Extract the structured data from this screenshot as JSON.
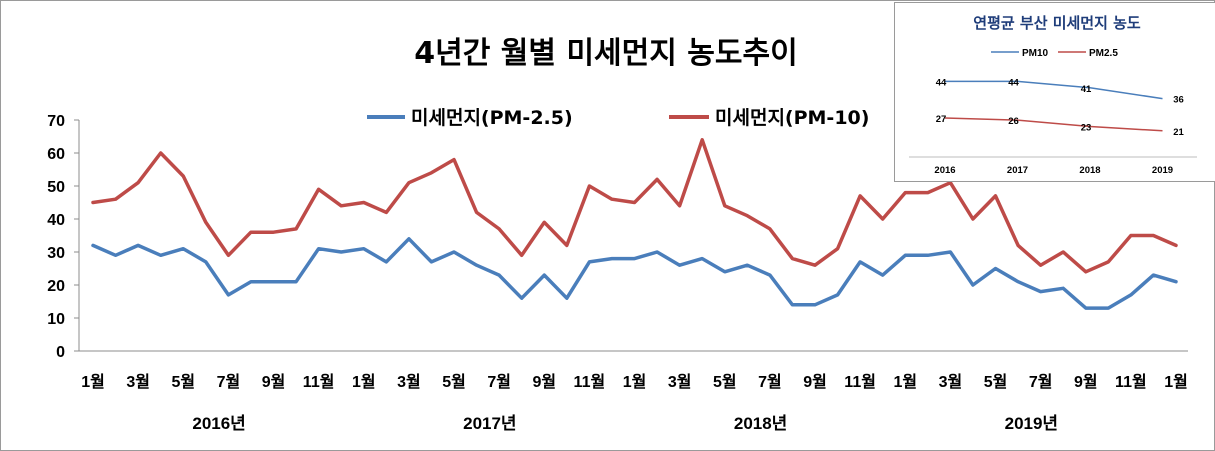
{
  "chart_data": [
    {
      "type": "line",
      "title": "4년간 월별 미세먼지 농도추이",
      "ylim": [
        0,
        70
      ],
      "yticks": [
        "0",
        "10",
        "20",
        "30",
        "40",
        "50",
        "60",
        "70"
      ],
      "grid": false,
      "legend": "top-center",
      "x_tick_labels": [
        {
          "index": 0,
          "label": "1월"
        },
        {
          "index": 2,
          "label": "3월"
        },
        {
          "index": 4,
          "label": "5월"
        },
        {
          "index": 6,
          "label": "7월"
        },
        {
          "index": 8,
          "label": "9월"
        },
        {
          "index": 10,
          "label": "11월"
        },
        {
          "index": 12,
          "label": "1월"
        },
        {
          "index": 14,
          "label": "3월"
        },
        {
          "index": 16,
          "label": "5월"
        },
        {
          "index": 18,
          "label": "7월"
        },
        {
          "index": 20,
          "label": "9월"
        },
        {
          "index": 22,
          "label": "11월"
        },
        {
          "index": 24,
          "label": "1월"
        },
        {
          "index": 26,
          "label": "3월"
        },
        {
          "index": 28,
          "label": "5월"
        },
        {
          "index": 30,
          "label": "7월"
        },
        {
          "index": 32,
          "label": "9월"
        },
        {
          "index": 34,
          "label": "11월"
        },
        {
          "index": 36,
          "label": "1월"
        },
        {
          "index": 38,
          "label": "3월"
        },
        {
          "index": 40,
          "label": "5월"
        },
        {
          "index": 42,
          "label": "7월"
        },
        {
          "index": 44,
          "label": "9월"
        },
        {
          "index": 46,
          "label": "11월"
        },
        {
          "index": 48,
          "label": "1월"
        }
      ],
      "year_labels": [
        {
          "center_index": 5.5,
          "label": "2016년"
        },
        {
          "center_index": 17.5,
          "label": "2017년"
        },
        {
          "center_index": 29.5,
          "label": "2018년"
        },
        {
          "center_index": 41.5,
          "label": "2019년"
        }
      ],
      "series": [
        {
          "name": "미세먼지(PM-2.5)",
          "color": "#4a7ebb",
          "values": [
            32,
            29,
            32,
            29,
            31,
            27,
            17,
            21,
            21,
            21,
            31,
            30,
            31,
            27,
            34,
            27,
            30,
            26,
            23,
            16,
            23,
            16,
            27,
            28,
            28,
            30,
            26,
            28,
            24,
            26,
            23,
            14,
            14,
            17,
            27,
            23,
            29,
            29,
            30,
            20,
            25,
            21,
            18,
            19,
            13,
            13,
            17,
            23,
            21
          ]
        },
        {
          "name": "미세먼지(PM-10)",
          "color": "#be4b48",
          "values": [
            45,
            46,
            51,
            60,
            53,
            39,
            29,
            36,
            36,
            37,
            49,
            44,
            45,
            42,
            51,
            54,
            58,
            42,
            37,
            29,
            39,
            32,
            50,
            46,
            45,
            52,
            44,
            64,
            44,
            41,
            37,
            28,
            26,
            31,
            47,
            40,
            48,
            48,
            51,
            40,
            47,
            32,
            26,
            30,
            24,
            27,
            35,
            35,
            32
          ]
        }
      ]
    },
    {
      "type": "line",
      "title": "연평균 부산 미세먼지 농도",
      "categories": [
        "2016",
        "2017",
        "2018",
        "2019"
      ],
      "legend": "top-center",
      "grid": false,
      "series": [
        {
          "name": "PM10",
          "color": "#4a7ebb",
          "values": [
            44,
            44,
            41,
            36
          ],
          "labels": [
            "44",
            "44",
            "41",
            "36"
          ]
        },
        {
          "name": "PM2.5",
          "color": "#be4b48",
          "values": [
            27,
            26,
            23,
            21
          ],
          "labels": [
            "27",
            "26",
            "23",
            "21"
          ]
        }
      ]
    }
  ]
}
